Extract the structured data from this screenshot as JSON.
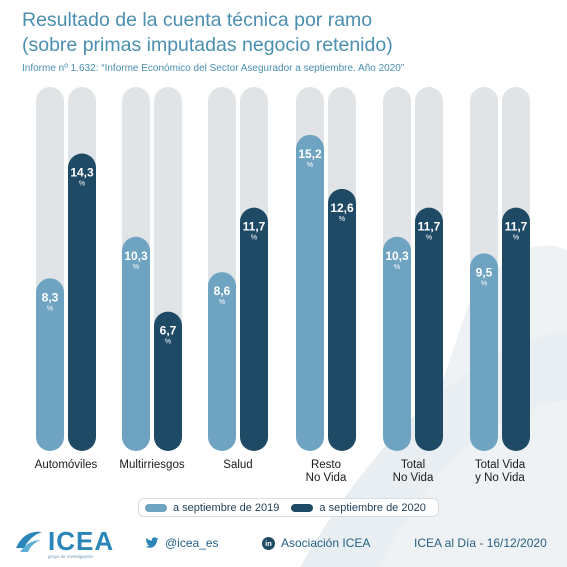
{
  "title_line1": "Resultado de la cuenta técnica por ramo",
  "title_line2": "(sobre primas imputadas negocio retenido)",
  "subtitle": "Informe nº 1.632: “Informe Económico del Sector Asegurador a septiembre. Año 2020”",
  "colors": {
    "series_2019": "#6fa3c2",
    "series_2020": "#1f4a66",
    "track": "#e1e4e6",
    "title": "#4a8fb1",
    "accent": "#2a86b8"
  },
  "chart_data": {
    "type": "bar",
    "title": "Resultado de la cuenta técnica por ramo",
    "categories": [
      [
        "Automóviles"
      ],
      [
        "Multirriesgos"
      ],
      [
        "Salud"
      ],
      [
        "Resto",
        "No Vida"
      ],
      [
        "Total",
        "No Vida"
      ],
      [
        "Total Vida",
        "y No Vida"
      ]
    ],
    "series": [
      {
        "name": "a septiembre de 2019",
        "values": [
          8.3,
          10.3,
          8.6,
          15.2,
          10.3,
          9.5
        ],
        "labels": [
          "8,3",
          "10,3",
          "8,6",
          "15,2",
          "10,3",
          "9,5"
        ]
      },
      {
        "name": "a septiembre de 2020",
        "values": [
          14.3,
          6.7,
          11.7,
          12.6,
          11.7,
          11.7
        ],
        "labels": [
          "14,3",
          "6,7",
          "11,7",
          "12,6",
          "11,7",
          "11,7"
        ]
      }
    ],
    "unit": "%",
    "ylim": [
      0,
      17.5
    ],
    "grid": false,
    "legend_position": "bottom"
  },
  "legend": {
    "item_2019": "a septiembre de 2019",
    "item_2020": "a septiembre de 2020"
  },
  "footer": {
    "logo_text": "ICEA",
    "logo_tagline": "grupo de investigación",
    "twitter": "@icea_es",
    "twitter_icon": "twitter-bird-icon",
    "linkedin_badge": "in",
    "linkedin": "Asociación ICEA",
    "date_line": "ICEA al Día - 16/12/2020"
  }
}
